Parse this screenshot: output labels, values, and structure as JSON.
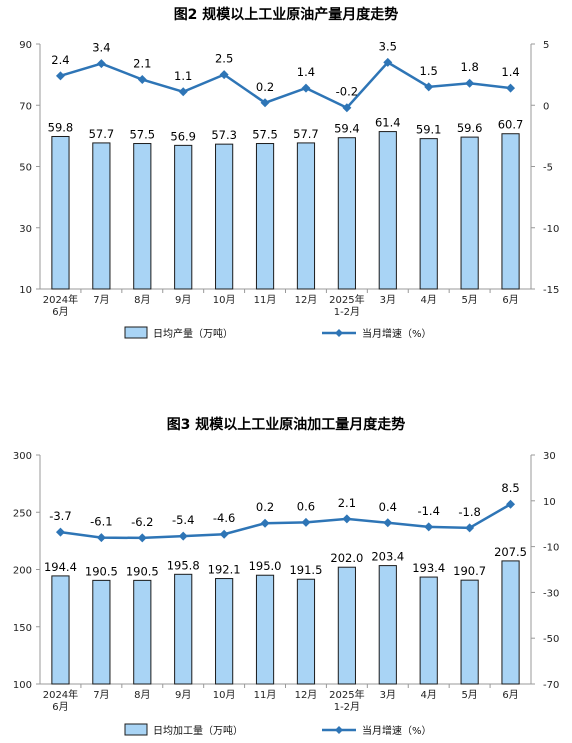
{
  "charts": [
    {
      "title": "图2  规模以上工业原油产量月度走势",
      "chart_data": {
        "type": "bar",
        "categories": [
          "2024年\n6月",
          "7月",
          "8月",
          "9月",
          "10月",
          "11月",
          "12月",
          "2025年\n1-2月",
          "3月",
          "4月",
          "5月",
          "6月"
        ],
        "series": [
          {
            "name": "日均产量（万吨）",
            "type": "bar",
            "axis": "left",
            "values": [
              59.8,
              57.7,
              57.5,
              56.9,
              57.3,
              57.5,
              57.7,
              59.4,
              61.4,
              59.1,
              59.6,
              60.7
            ]
          },
          {
            "name": "当月增速（%）",
            "type": "line",
            "axis": "right",
            "values": [
              2.4,
              3.4,
              2.1,
              1.1,
              2.5,
              0.2,
              1.4,
              -0.2,
              3.5,
              1.5,
              1.8,
              1.4
            ]
          }
        ],
        "ylim_left": [
          10,
          90
        ],
        "yticks_left": [
          10,
          30,
          50,
          70,
          90
        ],
        "ylim_right": [
          -15,
          5
        ],
        "yticks_right": [
          -15,
          -10,
          -5,
          0,
          5
        ],
        "bar_color": "#a9d4f5",
        "line_color": "#2e75b6",
        "legend_position": "bottom"
      }
    },
    {
      "title": "图3  规模以上工业原油加工量月度走势",
      "chart_data": {
        "type": "bar",
        "categories": [
          "2024年\n6月",
          "7月",
          "8月",
          "9月",
          "10月",
          "11月",
          "12月",
          "2025年\n1-2月",
          "3月",
          "4月",
          "5月",
          "6月"
        ],
        "series": [
          {
            "name": "日均加工量（万吨）",
            "type": "bar",
            "axis": "left",
            "values": [
              194.4,
              190.5,
              190.5,
              195.8,
              192.1,
              195.0,
              191.5,
              202.0,
              203.4,
              193.4,
              190.7,
              207.5
            ]
          },
          {
            "name": "当月增速（%）",
            "type": "line",
            "axis": "right",
            "values": [
              -3.7,
              -6.1,
              -6.2,
              -5.4,
              -4.6,
              0.2,
              0.6,
              2.1,
              0.4,
              -1.4,
              -1.8,
              8.5
            ]
          }
        ],
        "ylim_left": [
          100,
          300
        ],
        "yticks_left": [
          100,
          150,
          200,
          250,
          300
        ],
        "ylim_right": [
          -70,
          30
        ],
        "yticks_right": [
          -70,
          -50,
          -30,
          -10,
          10,
          30
        ],
        "bar_color": "#a9d4f5",
        "line_color": "#2e75b6",
        "legend_position": "bottom"
      }
    }
  ]
}
